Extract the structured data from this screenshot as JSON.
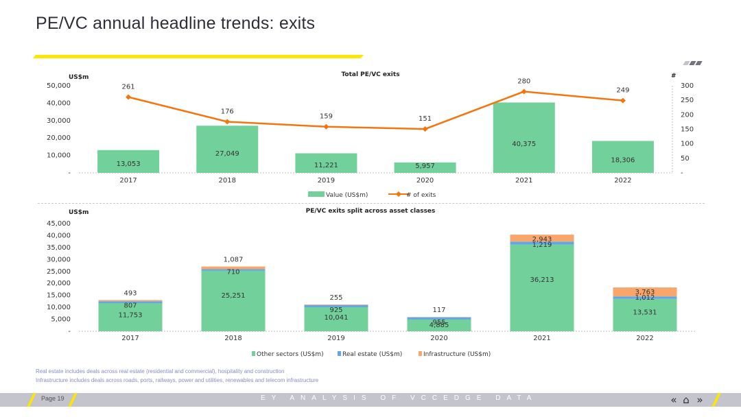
{
  "page": {
    "title": "PE/VC annual headline trends: exits",
    "notes": [
      "Real estate includes deals across real estate (residential and commercial), hospitality and construction",
      "Infrastructure includes deals across roads, ports, railways, power and utilities, renewables and telecom infrastructure"
    ],
    "footer": {
      "page_label": "Page 19",
      "tagline": "EY ANALYSIS OF VCCEDGE DATA",
      "nav": {
        "prev": "«",
        "home": "⌂",
        "next": "»"
      }
    },
    "colors": {
      "brand_yellow": "#ffe600",
      "footer_grey": "#c4c4cd",
      "title_text": "#2e2e38"
    }
  },
  "chart_data": [
    {
      "type": "bar",
      "title": "Total PE/VC exits",
      "ylabel": "US$m",
      "y2label": "#",
      "categories": [
        "2017",
        "2018",
        "2019",
        "2020",
        "2021",
        "2022"
      ],
      "ylim": [
        0,
        50000
      ],
      "yticks": [
        "-",
        "10,000",
        "20,000",
        "30,000",
        "40,000",
        "50,000"
      ],
      "y2lim": [
        0,
        300
      ],
      "y2ticks": [
        "-",
        "50",
        "100",
        "150",
        "200",
        "250",
        "300"
      ],
      "series": [
        {
          "name": "Value (US$m)",
          "type": "bar",
          "color": "#72d09a",
          "values": [
            13053,
            27049,
            11221,
            5957,
            40375,
            18306
          ],
          "labels": [
            "13,053",
            "27,049",
            "11,221",
            "5,957",
            "40,375",
            "18,306"
          ]
        },
        {
          "name": "# of exits",
          "type": "line",
          "axis": "secondary",
          "color": "#f5750c",
          "values": [
            261,
            176,
            159,
            151,
            280,
            249
          ],
          "labels": [
            "261",
            "176",
            "159",
            "151",
            "280",
            "249"
          ]
        }
      ],
      "legend": "bottom"
    },
    {
      "type": "bar",
      "stacked": true,
      "title": "PE/VC exits split across asset classes",
      "ylabel": "US$m",
      "categories": [
        "2017",
        "2018",
        "2019",
        "2020",
        "2021",
        "2022"
      ],
      "ylim": [
        0,
        45000
      ],
      "yticks": [
        "-",
        "5,000",
        "10,000",
        "15,000",
        "20,000",
        "25,000",
        "30,000",
        "35,000",
        "40,000",
        "45,000"
      ],
      "series": [
        {
          "name": "Other sectors (US$m)",
          "color": "#72d09a",
          "values": [
            11753,
            25251,
            10041,
            4885,
            36213,
            13531
          ],
          "labels": [
            "11,753",
            "25,251",
            "10,041",
            "4,885",
            "36,213",
            "13,531"
          ]
        },
        {
          "name": "Real estate (US$m)",
          "color": "#5fa8e8",
          "values": [
            807,
            710,
            925,
            955,
            1219,
            1012
          ],
          "labels": [
            "807",
            "710",
            "925",
            "955",
            "1,219",
            "1,012"
          ]
        },
        {
          "name": "Infrastructure (US$m)",
          "color": "#f8a66b",
          "values": [
            493,
            1087,
            255,
            117,
            2943,
            3763
          ],
          "labels": [
            "493",
            "1,087",
            "255",
            "117",
            "2,943",
            "3,763"
          ]
        }
      ],
      "legend": "bottom"
    }
  ]
}
